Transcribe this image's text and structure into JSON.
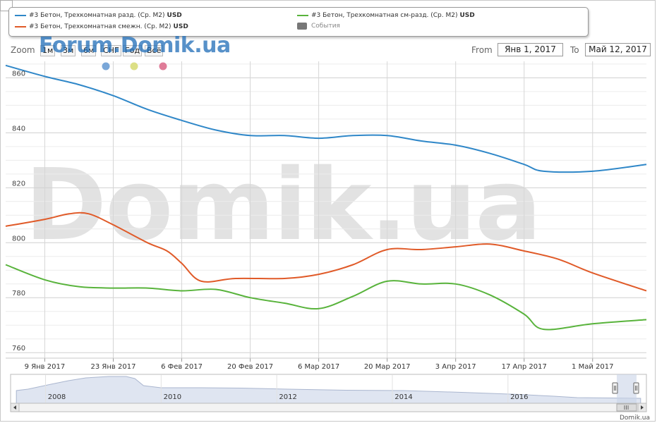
{
  "legend": {
    "items": [
      {
        "label": "#3 Бетон, Трехкомнатная разд. (Ср. М2)",
        "unit": "USD",
        "color": "#2f87c8"
      },
      {
        "label": "#3 Бетон, Трехкомнатная смежн. (Ср. М2)",
        "unit": "USD",
        "color": "#e05a28"
      },
      {
        "label": "#3 Бетон, Трехкомнатная см-разд. (Ср. М2)",
        "unit": "USD",
        "color": "#58b33b"
      }
    ],
    "events_label": "События",
    "events_color": "#777777"
  },
  "toolbar": {
    "zoom_label": "Zoom",
    "zoom_buttons": [
      "1м",
      "3м",
      "6м",
      "СНГ",
      "Год",
      "Всё"
    ],
    "from_label": "From",
    "from_value": "Янв 1, 2017",
    "to_label": "To",
    "to_value": "Май 12, 2017"
  },
  "watermark": {
    "top": "Forum.Domik.ua",
    "big": "Domik.ua"
  },
  "credit": "Domik.ua",
  "event_dot_colors": [
    "#7aa7d8",
    "#dcdf85",
    "#df7c98"
  ],
  "chart_data": {
    "type": "line",
    "x_type": "date",
    "x_range": [
      "2017-01-01",
      "2017-05-12"
    ],
    "ylim": [
      758,
      866
    ],
    "yticks": [
      760,
      780,
      800,
      820,
      840,
      860
    ],
    "xticks": [
      {
        "date": "2017-01-09",
        "label": "9 Янв 2017"
      },
      {
        "date": "2017-01-23",
        "label": "23 Янв 2017"
      },
      {
        "date": "2017-02-06",
        "label": "6 Фев 2017"
      },
      {
        "date": "2017-02-20",
        "label": "20 Фев 2017"
      },
      {
        "date": "2017-03-06",
        "label": "6 Мар 2017"
      },
      {
        "date": "2017-03-20",
        "label": "20 Мар 2017"
      },
      {
        "date": "2017-04-03",
        "label": "3 Апр 2017"
      },
      {
        "date": "2017-04-17",
        "label": "17 Апр 2017"
      },
      {
        "date": "2017-05-01",
        "label": "1 Май 2017"
      }
    ],
    "grid": true,
    "series": [
      {
        "name": "#3 Бетон, Трехкомнатная разд. (Ср. М2)",
        "color": "#2f87c8",
        "points": [
          [
            "2017-01-01",
            864.5
          ],
          [
            "2017-01-09",
            860.5
          ],
          [
            "2017-01-16",
            857.5
          ],
          [
            "2017-01-23",
            853.5
          ],
          [
            "2017-01-30",
            848.5
          ],
          [
            "2017-02-06",
            844.5
          ],
          [
            "2017-02-13",
            841
          ],
          [
            "2017-02-20",
            839
          ],
          [
            "2017-02-27",
            839
          ],
          [
            "2017-03-06",
            838
          ],
          [
            "2017-03-13",
            839
          ],
          [
            "2017-03-20",
            839
          ],
          [
            "2017-03-27",
            837
          ],
          [
            "2017-04-03",
            835.5
          ],
          [
            "2017-04-10",
            832.5
          ],
          [
            "2017-04-17",
            828.5
          ],
          [
            "2017-04-21",
            826
          ],
          [
            "2017-05-01",
            826
          ],
          [
            "2017-05-12",
            828.5
          ]
        ]
      },
      {
        "name": "#3 Бетон, Трехкомнатная смежн. (Ср. М2)",
        "color": "#e05a28",
        "points": [
          [
            "2017-01-01",
            806
          ],
          [
            "2017-01-09",
            808.5
          ],
          [
            "2017-01-14",
            810.5
          ],
          [
            "2017-01-18",
            810.5
          ],
          [
            "2017-01-23",
            806.5
          ],
          [
            "2017-01-30",
            800
          ],
          [
            "2017-02-03",
            797
          ],
          [
            "2017-02-06",
            792.5
          ],
          [
            "2017-02-10",
            786
          ],
          [
            "2017-02-17",
            787
          ],
          [
            "2017-02-27",
            787
          ],
          [
            "2017-03-06",
            788.5
          ],
          [
            "2017-03-13",
            792
          ],
          [
            "2017-03-20",
            797.5
          ],
          [
            "2017-03-27",
            797.5
          ],
          [
            "2017-04-03",
            798.5
          ],
          [
            "2017-04-10",
            799.5
          ],
          [
            "2017-04-17",
            797
          ],
          [
            "2017-04-24",
            794
          ],
          [
            "2017-05-01",
            789
          ],
          [
            "2017-05-12",
            782.5
          ]
        ]
      },
      {
        "name": "#3 Бетон, Трехкомнатная см-разд. (Ср. М2)",
        "color": "#58b33b",
        "points": [
          [
            "2017-01-01",
            792
          ],
          [
            "2017-01-09",
            786.5
          ],
          [
            "2017-01-16",
            784
          ],
          [
            "2017-01-23",
            783.5
          ],
          [
            "2017-01-30",
            783.5
          ],
          [
            "2017-02-06",
            782.5
          ],
          [
            "2017-02-13",
            783
          ],
          [
            "2017-02-20",
            780
          ],
          [
            "2017-02-27",
            778
          ],
          [
            "2017-03-06",
            776
          ],
          [
            "2017-03-13",
            780.5
          ],
          [
            "2017-03-20",
            786
          ],
          [
            "2017-03-27",
            785
          ],
          [
            "2017-04-03",
            785
          ],
          [
            "2017-04-10",
            781
          ],
          [
            "2017-04-17",
            774
          ],
          [
            "2017-04-21",
            768.5
          ],
          [
            "2017-05-01",
            770.5
          ],
          [
            "2017-05-12",
            772
          ]
        ]
      }
    ],
    "navigator": {
      "year_labels": [
        "2008",
        "2010",
        "2012",
        "2014",
        "2016"
      ],
      "years": [
        2008,
        2010,
        2012,
        2014,
        2016
      ],
      "x_range": [
        2007.2,
        2018.2
      ]
    }
  }
}
